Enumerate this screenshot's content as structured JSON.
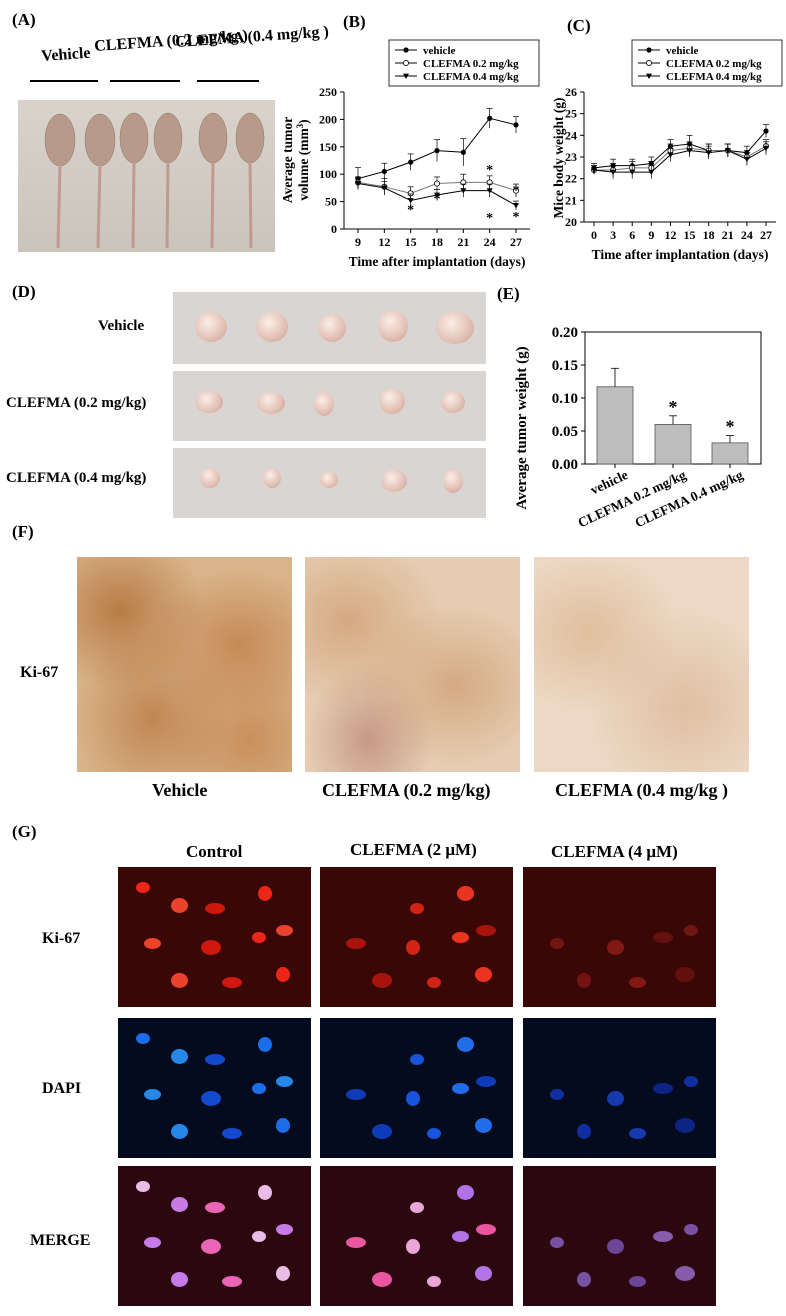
{
  "panel_A": {
    "label": "(A)",
    "groups": [
      "Vehicle",
      "CLEFMA (0.2 mg/kg )",
      "CLEFMA (0.4 mg/kg )"
    ]
  },
  "panel_B": {
    "label": "(B)"
  },
  "panel_C": {
    "label": "(C)"
  },
  "panel_D": {
    "label": "(D)",
    "rows": [
      "Vehicle",
      "CLEFMA (0.2 mg/kg)",
      "CLEFMA (0.4 mg/kg)"
    ]
  },
  "panel_E": {
    "label": "(E)"
  },
  "panel_F": {
    "label": "(F)",
    "row_label": "Ki-67",
    "columns": [
      "Vehicle",
      "CLEFMA (0.2 mg/kg)",
      "CLEFMA (0.4 mg/kg )"
    ]
  },
  "panel_G": {
    "label": "(G)",
    "columns": [
      "Control",
      "CLEFMA (2 μM)",
      "CLEFMA (4 μM)"
    ],
    "rows": [
      "Ki-67",
      "DAPI",
      "MERGE"
    ]
  },
  "chart_data": [
    {
      "id": "B",
      "type": "line",
      "xlabel": "Time after implantation (days)",
      "ylabel": "Average tumor volume (mm³)",
      "x": [
        9,
        12,
        15,
        18,
        21,
        24,
        27
      ],
      "ylim": [
        0,
        250
      ],
      "yticks": [
        0,
        50,
        100,
        150,
        200,
        250
      ],
      "legend": "top-left",
      "series": [
        {
          "name": "vehicle",
          "marker": "filled-circle",
          "values": [
            92,
            105,
            122,
            143,
            140,
            202,
            190
          ],
          "err": [
            20,
            15,
            15,
            20,
            25,
            18,
            15
          ]
        },
        {
          "name": "CLEFMA 0.2 mg/kg",
          "marker": "open-circle",
          "values": [
            85,
            77,
            65,
            83,
            85,
            85,
            70
          ],
          "err": [
            10,
            15,
            12,
            12,
            15,
            12,
            12
          ]
        },
        {
          "name": "CLEFMA 0.4 mg/kg",
          "marker": "filled-triangle",
          "values": [
            83,
            75,
            52,
            62,
            70,
            70,
            43
          ],
          "err": [
            10,
            12,
            12,
            10,
            12,
            12,
            8
          ]
        }
      ],
      "annotations": [
        {
          "x": 15,
          "text": "*"
        },
        {
          "x": 18,
          "text": "*"
        },
        {
          "x": 24,
          "text": "*"
        },
        {
          "x": 24,
          "text": "*"
        },
        {
          "x": 27,
          "text": "*"
        },
        {
          "x": 27,
          "text": "*"
        }
      ]
    },
    {
      "id": "C",
      "type": "line",
      "xlabel": "Time after implantation (days)",
      "ylabel": "Mice body weight (g)",
      "x": [
        0,
        3,
        6,
        9,
        12,
        15,
        18,
        21,
        24,
        27
      ],
      "ylim": [
        20,
        26
      ],
      "yticks": [
        20,
        21,
        22,
        23,
        24,
        25,
        26
      ],
      "legend": "top-left",
      "series": [
        {
          "name": "vehicle",
          "marker": "filled-circle",
          "values": [
            22.5,
            22.6,
            22.6,
            22.7,
            23.5,
            23.6,
            23.3,
            23.3,
            23.2,
            24.2
          ],
          "err": [
            0.2,
            0.3,
            0.3,
            0.3,
            0.3,
            0.4,
            0.3,
            0.3,
            0.3,
            0.3
          ]
        },
        {
          "name": "CLEFMA 0.2 mg/kg",
          "marker": "open-circle",
          "values": [
            22.4,
            22.4,
            22.5,
            22.5,
            23.3,
            23.4,
            23.3,
            23.3,
            23.0,
            23.5
          ],
          "err": [
            0.2,
            0.3,
            0.3,
            0.3,
            0.3,
            0.3,
            0.3,
            0.3,
            0.3,
            0.3
          ]
        },
        {
          "name": "CLEFMA 0.4 mg/kg",
          "marker": "filled-triangle",
          "values": [
            22.4,
            22.3,
            22.3,
            22.3,
            23.1,
            23.3,
            23.2,
            23.3,
            22.9,
            23.4
          ],
          "err": [
            0.2,
            0.3,
            0.3,
            0.3,
            0.3,
            0.3,
            0.3,
            0.3,
            0.3,
            0.3
          ]
        }
      ]
    },
    {
      "id": "E",
      "type": "bar",
      "ylabel": "Average tumor weight (g)",
      "categories": [
        "vehicle",
        "CLEFMA 0.2 mg/kg",
        "CLEFMA 0.4 mg/kg"
      ],
      "values": [
        0.117,
        0.06,
        0.032
      ],
      "err": [
        0.028,
        0.013,
        0.011
      ],
      "ylim": [
        0,
        0.2
      ],
      "yticks": [
        "0.00",
        "0.05",
        "0.10",
        "0.15",
        "0.20"
      ],
      "annotations": [
        {
          "category": "CLEFMA 0.2 mg/kg",
          "text": "*"
        },
        {
          "category": "CLEFMA 0.4 mg/kg",
          "text": "*"
        }
      ],
      "colors": {
        "bar": "#bdbdbd"
      }
    }
  ]
}
